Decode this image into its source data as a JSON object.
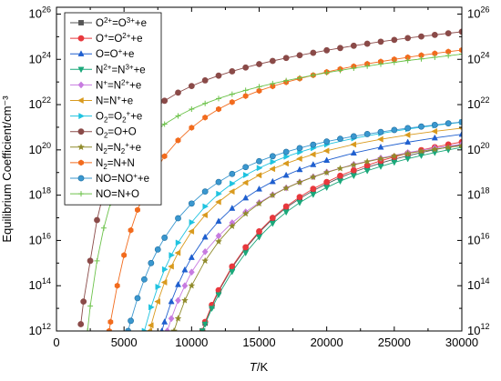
{
  "chart_data": {
    "type": "line",
    "xlabel": "T/K",
    "xlabel_italic": "T",
    "xlabel_unit": "/K",
    "ylabel": "Equilibrium Coefficient/cm⁻³",
    "xlim": [
      0,
      30000
    ],
    "ylim_log10": [
      12,
      26.3
    ],
    "yscale": "log",
    "x_ticks": [
      0,
      5000,
      10000,
      15000,
      20000,
      25000,
      30000
    ],
    "x_tick_labels": [
      "0",
      "5000",
      "10000",
      "15000",
      "20000",
      "25000",
      "30000"
    ],
    "y_ticks_exponent": [
      12,
      14,
      16,
      18,
      20,
      22,
      24,
      26
    ],
    "y_tick_labels": [
      {
        "base": "10",
        "exp": "12"
      },
      {
        "base": "10",
        "exp": "14"
      },
      {
        "base": "10",
        "exp": "16"
      },
      {
        "base": "10",
        "exp": "18"
      },
      {
        "base": "10",
        "exp": "20"
      },
      {
        "base": "10",
        "exp": "22"
      },
      {
        "base": "10",
        "exp": "24"
      },
      {
        "base": "10",
        "exp": "26"
      }
    ],
    "legend_position": "top-left",
    "grid": false,
    "series": [
      {
        "name": "O2+=O3++e",
        "label_parts": [
          [
            "O",
            ""
          ],
          [
            "2+",
            "sup"
          ],
          [
            "=O",
            ""
          ],
          [
            "3+",
            "sup"
          ],
          [
            "+e",
            ""
          ]
        ],
        "color": "#555555",
        "marker": "square",
        "fill": true,
        "x": [
          10800,
          11000,
          11500,
          12000,
          13000,
          14000,
          15000,
          16000,
          17000,
          18000,
          19000,
          20000,
          21000,
          22000,
          23000,
          24000,
          25000,
          26000,
          27000,
          28000,
          29000,
          30000
        ],
        "y": [
          12.0,
          12.35,
          13.1,
          13.75,
          14.8,
          15.65,
          16.35,
          16.95,
          17.45,
          17.85,
          18.2,
          18.5,
          18.78,
          19.02,
          19.23,
          19.42,
          19.59,
          19.74,
          19.88,
          20.01,
          20.12,
          20.23
        ]
      },
      {
        "name": "O+=O2++e",
        "label_parts": [
          [
            "O",
            ""
          ],
          [
            "+",
            "sup"
          ],
          [
            "=O",
            ""
          ],
          [
            "2+",
            "sup"
          ],
          [
            "+e",
            ""
          ]
        ],
        "color": "#e8383d",
        "marker": "circle",
        "fill": true,
        "x": [
          10800,
          11000,
          11500,
          12000,
          13000,
          14000,
          15000,
          16000,
          17000,
          18000,
          19000,
          20000,
          21000,
          22000,
          23000,
          24000,
          25000,
          26000,
          27000,
          28000,
          29000,
          30000
        ],
        "y": [
          12.0,
          12.4,
          13.15,
          13.8,
          14.85,
          15.7,
          16.4,
          17.0,
          17.5,
          17.92,
          18.28,
          18.58,
          18.86,
          19.1,
          19.32,
          19.52,
          19.69,
          19.85,
          19.99,
          20.12,
          20.24,
          20.35
        ]
      },
      {
        "name": "O=O++e",
        "label_parts": [
          [
            "O=O",
            ""
          ],
          [
            "+",
            "sup"
          ],
          [
            "+e",
            ""
          ]
        ],
        "color": "#1f5fcf",
        "marker": "triangle-up",
        "fill": true,
        "x": [
          7800,
          8000,
          8500,
          9000,
          9500,
          10000,
          11000,
          12000,
          13000,
          14000,
          15000,
          16000,
          17000,
          18000,
          19000,
          20000,
          22000,
          24000,
          26000,
          28000,
          30000
        ],
        "y": [
          12.0,
          12.4,
          13.3,
          14.05,
          14.7,
          15.25,
          16.15,
          16.85,
          17.42,
          17.88,
          18.27,
          18.6,
          18.88,
          19.13,
          19.35,
          19.54,
          19.86,
          20.12,
          20.34,
          20.53,
          20.69
        ]
      },
      {
        "name": "N2+=N3++e",
        "label_parts": [
          [
            "N",
            ""
          ],
          [
            "2+",
            "sup"
          ],
          [
            "=N",
            ""
          ],
          [
            "3+",
            "sup"
          ],
          [
            "+e",
            ""
          ]
        ],
        "color": "#1aa87a",
        "marker": "triangle-down",
        "fill": true,
        "x": [
          10800,
          11000,
          11500,
          12000,
          13000,
          14000,
          15000,
          16000,
          17000,
          18000,
          19000,
          20000,
          21000,
          22000,
          23000,
          24000,
          25000,
          26000,
          27000,
          28000,
          29000,
          30000
        ],
        "y": [
          12.0,
          12.3,
          13.0,
          13.6,
          14.62,
          15.45,
          16.15,
          16.75,
          17.25,
          17.67,
          18.03,
          18.34,
          18.62,
          18.86,
          19.08,
          19.27,
          19.45,
          19.61,
          19.75,
          19.88,
          20.0,
          20.11
        ]
      },
      {
        "name": "N+=N2++e",
        "label_parts": [
          [
            "N",
            ""
          ],
          [
            "+",
            "sup"
          ],
          [
            "=N",
            ""
          ],
          [
            "2+",
            "sup"
          ],
          [
            "+e",
            ""
          ]
        ],
        "color": "#c77be0",
        "marker": "diamond",
        "fill": true,
        "x": [
          8200,
          8500,
          9000,
          9500,
          10000,
          11000,
          12000,
          13000,
          14000,
          15000,
          16000,
          17000,
          18000,
          19000,
          20000,
          22000,
          24000,
          26000,
          28000,
          30000
        ],
        "y": [
          12.0,
          12.55,
          13.35,
          14.0,
          14.6,
          15.5,
          16.2,
          16.78,
          17.26,
          17.67,
          18.02,
          18.32,
          18.58,
          18.81,
          19.02,
          19.36,
          19.64,
          19.88,
          20.08,
          20.25
        ]
      },
      {
        "name": "N=N++e",
        "label_parts": [
          [
            "N=N",
            ""
          ],
          [
            "+",
            "sup"
          ],
          [
            "+e",
            ""
          ]
        ],
        "color": "#d99a1e",
        "marker": "triangle-left",
        "fill": true,
        "x": [
          6900,
          7000,
          7500,
          8000,
          8500,
          9000,
          10000,
          11000,
          12000,
          13000,
          14000,
          15000,
          16000,
          17000,
          18000,
          19000,
          20000,
          22000,
          24000,
          26000,
          28000,
          30000
        ],
        "y": [
          12.0,
          12.25,
          13.3,
          14.15,
          14.85,
          15.45,
          16.4,
          17.12,
          17.7,
          18.16,
          18.55,
          18.88,
          19.16,
          19.4,
          19.61,
          19.8,
          19.96,
          20.24,
          20.47,
          20.66,
          20.82,
          20.96
        ]
      },
      {
        "name": "O2=O2++e",
        "label_parts": [
          [
            "O",
            ""
          ],
          [
            "2",
            "sub"
          ],
          [
            "=O",
            ""
          ],
          [
            "2",
            "sub"
          ],
          [
            "+",
            "sup"
          ],
          [
            "+e",
            ""
          ]
        ],
        "color": "#1fc3e0",
        "marker": "triangle-right",
        "fill": true,
        "x": [
          6500,
          7000,
          7500,
          8000,
          8500,
          9000,
          10000,
          11000,
          12000,
          13000,
          14000,
          15000,
          16000,
          17000,
          18000,
          19000,
          20000,
          22000,
          24000,
          26000,
          28000,
          30000
        ],
        "y": [
          12.0,
          13.05,
          13.95,
          14.72,
          15.35,
          15.9,
          16.8,
          17.5,
          18.06,
          18.51,
          18.89,
          19.2,
          19.47,
          19.7,
          19.9,
          20.08,
          20.24,
          20.51,
          20.73,
          20.92,
          21.08,
          21.22
        ]
      },
      {
        "name": "O2=O+O",
        "label_parts": [
          [
            "O",
            ""
          ],
          [
            "2",
            "sub"
          ],
          [
            "=O+O",
            ""
          ]
        ],
        "color": "#8a4a48",
        "marker": "circle",
        "fill": true,
        "x": [
          1800,
          2000,
          2500,
          3000,
          3500,
          4000,
          4500,
          5000,
          6000,
          7000,
          8000,
          9000,
          10000,
          11000,
          12000,
          13000,
          14000,
          15000,
          16000,
          17000,
          18000,
          19000,
          20000,
          21000,
          22000,
          23000,
          24000,
          25000,
          26000,
          27000,
          28000,
          29000,
          30000
        ],
        "y": [
          12.3,
          13.3,
          15.1,
          16.9,
          18.15,
          19.05,
          19.75,
          20.3,
          21.12,
          21.72,
          22.17,
          22.53,
          22.82,
          23.07,
          23.28,
          23.47,
          23.64,
          23.79,
          23.93,
          24.06,
          24.18,
          24.29,
          24.4,
          24.5,
          24.6,
          24.69,
          24.78,
          24.86,
          24.94,
          25.01,
          25.08,
          25.15,
          25.22
        ]
      },
      {
        "name": "N2=N2++e",
        "label_parts": [
          [
            "N",
            ""
          ],
          [
            "2",
            "sub"
          ],
          [
            "=N",
            ""
          ],
          [
            "2",
            "sub"
          ],
          [
            "+",
            "sup"
          ],
          [
            "+e",
            ""
          ]
        ],
        "color": "#8f8a2a",
        "marker": "star",
        "fill": true,
        "x": [
          8700,
          9000,
          9500,
          10000,
          11000,
          12000,
          13000,
          14000,
          15000,
          16000,
          17000,
          18000,
          19000,
          20000,
          21000,
          22000,
          23000,
          24000,
          25000,
          26000,
          27000,
          28000,
          29000,
          30000
        ],
        "y": [
          12.0,
          12.55,
          13.35,
          14.0,
          15.1,
          15.95,
          16.63,
          17.18,
          17.63,
          18.0,
          18.31,
          18.57,
          18.8,
          19.0,
          19.18,
          19.34,
          19.48,
          19.61,
          19.73,
          19.84,
          19.94,
          20.03,
          20.11,
          20.19
        ]
      },
      {
        "name": "N2=N+N",
        "label_parts": [
          [
            "N",
            ""
          ],
          [
            "2",
            "sub"
          ],
          [
            "=N+N",
            ""
          ]
        ],
        "color": "#f26b1d",
        "marker": "hexagon",
        "fill": true,
        "x": [
          3900,
          4000,
          4500,
          5000,
          5500,
          6000,
          7000,
          8000,
          9000,
          10000,
          11000,
          12000,
          13000,
          14000,
          15000,
          16000,
          17000,
          18000,
          19000,
          20000,
          21000,
          22000,
          23000,
          24000,
          25000,
          26000,
          27000,
          28000,
          29000,
          30000
        ],
        "y": [
          12.0,
          12.4,
          14.0,
          15.35,
          16.45,
          17.35,
          18.75,
          19.72,
          20.42,
          20.98,
          21.43,
          21.8,
          22.11,
          22.38,
          22.61,
          22.81,
          22.99,
          23.15,
          23.3,
          23.44,
          23.57,
          23.69,
          23.8,
          23.9,
          24.0,
          24.09,
          24.18,
          24.26,
          24.34,
          24.41
        ]
      },
      {
        "name": "NO=NO++e",
        "label_parts": [
          [
            "NO=NO",
            ""
          ],
          [
            "+",
            "sup"
          ],
          [
            "+e",
            ""
          ]
        ],
        "color": "#3a97cf",
        "marker": "sphere",
        "fill": true,
        "x": [
          5300,
          5500,
          6000,
          6500,
          7000,
          7500,
          8000,
          9000,
          10000,
          11000,
          12000,
          13000,
          14000,
          15000,
          16000,
          17000,
          18000,
          19000,
          20000,
          21000,
          22000,
          23000,
          24000,
          25000,
          26000,
          27000,
          28000,
          29000,
          30000
        ],
        "y": [
          12.0,
          12.45,
          13.45,
          14.28,
          15.0,
          15.6,
          16.12,
          16.98,
          17.63,
          18.16,
          18.58,
          18.94,
          19.24,
          19.5,
          19.72,
          19.91,
          20.08,
          20.23,
          20.37,
          20.49,
          20.6,
          20.7,
          20.79,
          20.88,
          20.96,
          21.03,
          21.1,
          21.17,
          21.23
        ]
      },
      {
        "name": "NO=N+O",
        "label_parts": [
          [
            "NO=N+O",
            ""
          ]
        ],
        "color": "#6cc24a",
        "marker": "plus",
        "fill": false,
        "x": [
          2300,
          2500,
          3000,
          3500,
          4000,
          4500,
          5000,
          5500,
          6000,
          7000,
          8000,
          9000,
          10000,
          11000,
          12000,
          13000,
          14000,
          15000,
          16000,
          17000,
          18000,
          19000,
          20000,
          21000,
          22000,
          23000,
          24000,
          25000,
          26000,
          27000,
          28000,
          29000,
          30000
        ],
        "y": [
          12.0,
          13.1,
          15.1,
          16.55,
          17.65,
          18.5,
          19.15,
          19.65,
          20.05,
          20.68,
          21.14,
          21.5,
          21.8,
          22.05,
          22.27,
          22.46,
          22.63,
          22.79,
          22.93,
          23.06,
          23.18,
          23.3,
          23.41,
          23.51,
          23.61,
          23.7,
          23.79,
          23.87,
          23.95,
          24.02,
          24.09,
          24.16,
          24.23
        ]
      }
    ]
  }
}
